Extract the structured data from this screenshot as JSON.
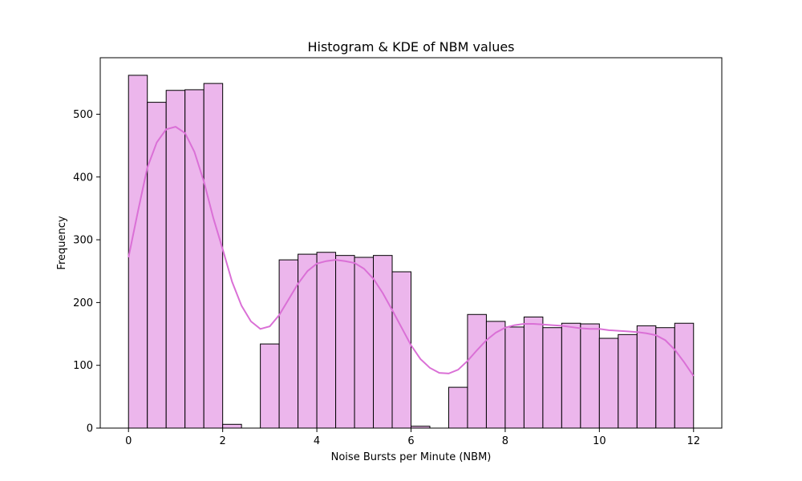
{
  "chart_data": {
    "type": "bar",
    "title": "Histogram & KDE of NBM values",
    "xlabel": "Noise Bursts per Minute (NBM)",
    "ylabel": "Frequency",
    "xlim": [
      -0.6,
      12.6
    ],
    "ylim": [
      0,
      590
    ],
    "xticks": [
      0,
      2,
      4,
      6,
      8,
      10,
      12
    ],
    "yticks": [
      0,
      100,
      200,
      300,
      400,
      500
    ],
    "bin_edges": [
      0,
      0.4,
      0.8,
      1.2,
      1.6,
      2.0,
      2.4,
      2.8,
      3.2,
      3.6,
      4.0,
      4.4,
      4.8,
      5.2,
      5.6,
      6.0,
      6.4,
      6.8,
      7.2,
      7.6,
      8.0,
      8.4,
      8.8,
      9.2,
      9.6,
      10.0,
      10.4,
      10.8,
      11.2,
      11.6,
      12.0
    ],
    "values": [
      562,
      519,
      538,
      539,
      549,
      6,
      0,
      134,
      268,
      277,
      280,
      275,
      272,
      275,
      249,
      3,
      0,
      65,
      181,
      170,
      161,
      177,
      160,
      167,
      166,
      143,
      149,
      163,
      160,
      167
    ],
    "kde": {
      "x": [
        0,
        0.2,
        0.4,
        0.6,
        0.8,
        1.0,
        1.2,
        1.4,
        1.6,
        1.8,
        2.0,
        2.2,
        2.4,
        2.6,
        2.8,
        3.0,
        3.2,
        3.4,
        3.6,
        3.8,
        4.0,
        4.2,
        4.4,
        4.6,
        4.8,
        5.0,
        5.2,
        5.4,
        5.6,
        5.8,
        6.0,
        6.2,
        6.4,
        6.6,
        6.8,
        7.0,
        7.2,
        7.4,
        7.6,
        7.8,
        8.0,
        8.2,
        8.4,
        8.6,
        8.8,
        9.0,
        9.2,
        9.4,
        9.6,
        9.8,
        10.0,
        10.2,
        10.4,
        10.6,
        10.8,
        11.0,
        11.2,
        11.4,
        11.6,
        11.8,
        12.0
      ],
      "y": [
        272,
        345,
        415,
        455,
        476,
        480,
        470,
        440,
        393,
        335,
        285,
        233,
        195,
        170,
        158,
        162,
        180,
        205,
        230,
        250,
        262,
        266,
        268,
        266,
        263,
        254,
        238,
        215,
        188,
        160,
        132,
        110,
        96,
        88,
        87,
        93,
        107,
        124,
        140,
        152,
        160,
        164,
        166,
        166,
        165,
        164,
        163,
        161,
        159,
        158,
        158,
        156,
        155,
        154,
        153,
        151,
        148,
        140,
        125,
        105,
        83
      ]
    },
    "colors": {
      "bar_fill": "#ecb6ec",
      "bar_edge": "#000000",
      "kde_line": "#da70d6"
    },
    "grid": false,
    "legend": "none"
  }
}
